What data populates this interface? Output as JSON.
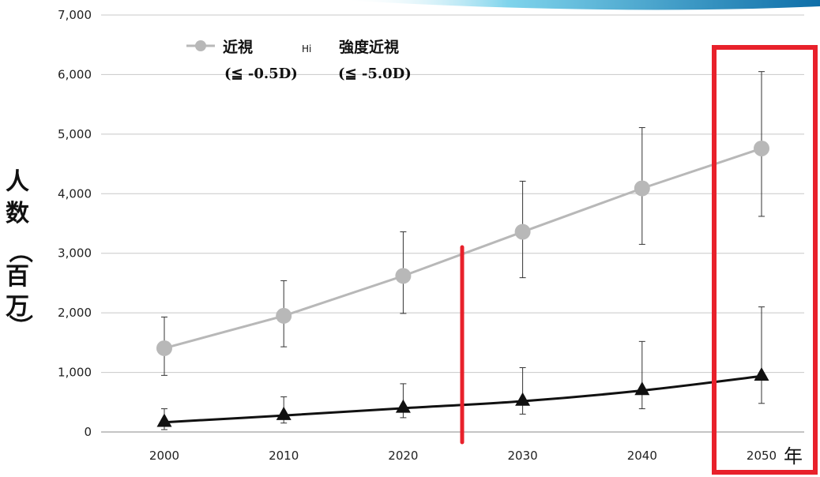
{
  "chart_data": {
    "type": "line",
    "x": [
      2000,
      2010,
      2020,
      2030,
      2040,
      2050
    ],
    "x_tick_labels": [
      "2000",
      "2010",
      "2020",
      "2030",
      "2040",
      "2050"
    ],
    "x_unit": "年",
    "ylabel_chars": [
      "人",
      "数",
      "（",
      "百",
      "万",
      "）"
    ],
    "ylim": [
      0,
      7000
    ],
    "y_ticks": [
      0,
      1000,
      2000,
      3000,
      4000,
      5000,
      6000,
      7000
    ],
    "y_tick_labels": [
      "0",
      "1,000",
      "2,000",
      "3,000",
      "4,000",
      "5,000",
      "6,000",
      "7,000"
    ],
    "grid": true,
    "legend_position": "top-left",
    "series": [
      {
        "name": "近視",
        "legend_sub": "(≦ -0.5D)",
        "color": "#b8b8b8",
        "marker": "circle",
        "values": [
          1406,
          1950,
          2620,
          3360,
          4090,
          4760
        ],
        "err_low": [
          950,
          1430,
          1990,
          2590,
          3150,
          3620
        ],
        "err_high": [
          1930,
          2540,
          3360,
          4210,
          5110,
          6050
        ]
      },
      {
        "name": "強度近視",
        "legend_sub": "(≦ -5.0D)",
        "legend_overlap_text": "Hi",
        "color": "#111111",
        "marker": "triangle",
        "values": [
          163,
          277,
          399,
          517,
          696,
          938
        ],
        "err_low": [
          40,
          150,
          240,
          300,
          390,
          480
        ],
        "err_high": [
          390,
          590,
          810,
          1080,
          1520,
          2100
        ]
      }
    ],
    "annotations": [
      {
        "type": "vertical-line",
        "color": "#e8212b",
        "x": 2025
      },
      {
        "type": "rectangle",
        "color": "#e8212b",
        "target": "2050"
      }
    ]
  }
}
